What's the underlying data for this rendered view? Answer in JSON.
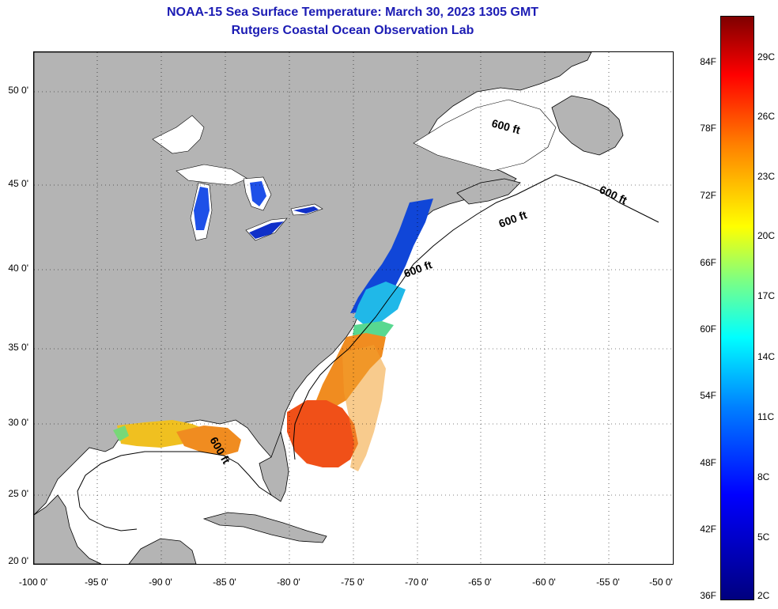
{
  "title": "NOAA-15 Sea Surface Temperature:  March 30, 2023 1305 GMT",
  "subtitle": "Rutgers Coastal Ocean Observation Lab",
  "map": {
    "lat_labels": [
      "50 0'",
      "45 0'",
      "40 0'",
      "35 0'",
      "30 0'",
      "25 0'",
      "20 0'"
    ],
    "lon_labels": [
      "-100 0'",
      "-95 0'",
      "-90 0'",
      "-85 0'",
      "-80 0'",
      "-75 0'",
      "-70 0'",
      "-65 0'",
      "-60 0'",
      "-55 0'",
      "-50 0'"
    ],
    "contour_label": "600 ft",
    "land_color": "#b4b4b4",
    "ocean_color": "#ffffff"
  },
  "colorbar": {
    "fahrenheit": [
      "84F",
      "78F",
      "72F",
      "66F",
      "60F",
      "54F",
      "48F",
      "42F",
      "36F"
    ],
    "celsius": [
      "29C",
      "26C",
      "23C",
      "20C",
      "17C",
      "14C",
      "11C",
      "8C",
      "5C",
      "2C"
    ],
    "colors": [
      "#00007f",
      "#0000ff",
      "#0080ff",
      "#00ffff",
      "#80ff80",
      "#ffff00",
      "#ff8000",
      "#ff0000",
      "#7f0000"
    ]
  }
}
